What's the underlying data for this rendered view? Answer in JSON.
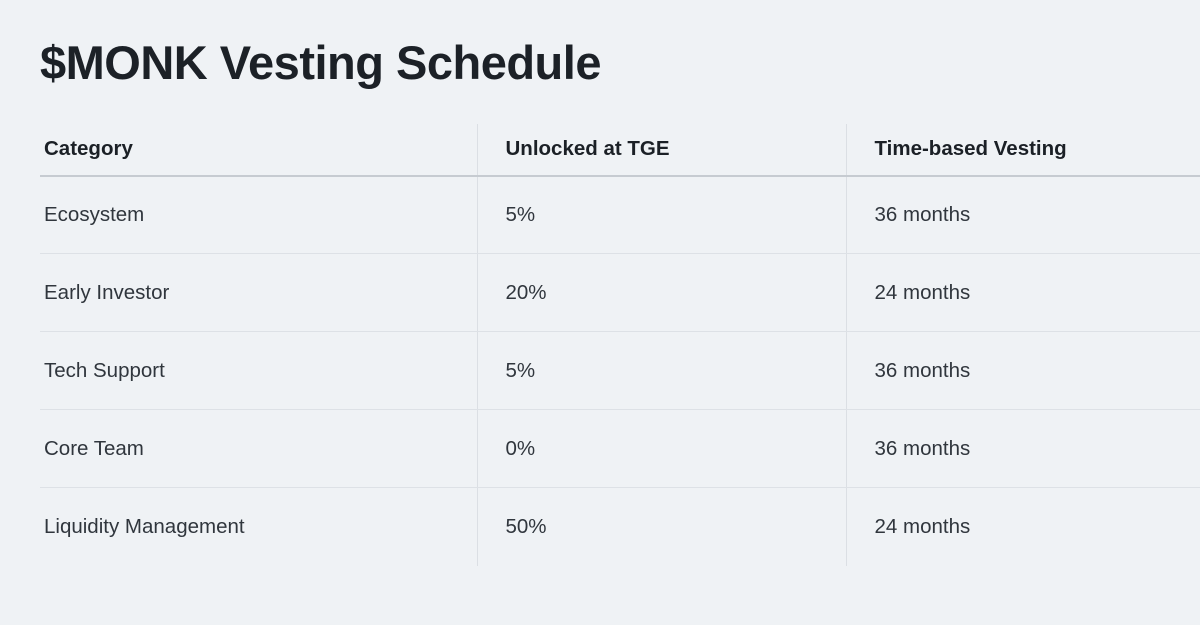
{
  "page": {
    "title": "$MONK Vesting Schedule"
  },
  "table": {
    "columns": [
      {
        "label": "Category"
      },
      {
        "label": "Unlocked at TGE"
      },
      {
        "label": "Time-based Vesting"
      }
    ],
    "rows": [
      {
        "category": "Ecosystem",
        "unlocked_at_tge": "5%",
        "time_based_vesting": "36 months"
      },
      {
        "category": "Early Investor",
        "unlocked_at_tge": "20%",
        "time_based_vesting": "24 months"
      },
      {
        "category": "Tech Support",
        "unlocked_at_tge": "5%",
        "time_based_vesting": "36 months"
      },
      {
        "category": "Core Team",
        "unlocked_at_tge": "0%",
        "time_based_vesting": "36 months"
      },
      {
        "category": "Liquidity Management",
        "unlocked_at_tge": "50%",
        "time_based_vesting": "24 months"
      }
    ]
  },
  "colors": {
    "background": "#eff2f5",
    "title_text": "#1c2127",
    "header_text": "#1b2026",
    "body_text": "#30363d",
    "header_underline": "#c6cbd1",
    "row_divider": "#dde1e6",
    "column_divider": "#dbdfe4"
  }
}
